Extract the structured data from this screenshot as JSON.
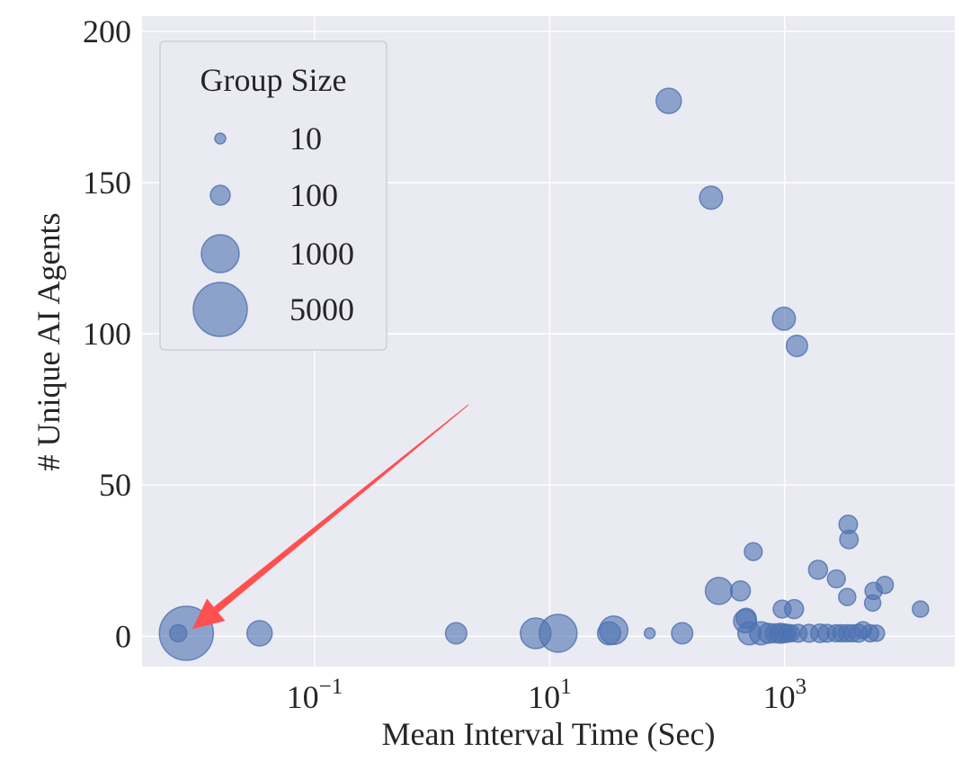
{
  "chart_data": {
    "type": "scatter",
    "title": "",
    "xlabel": "Mean Interval Time (Sec)",
    "ylabel": "# Unique AI Agents",
    "xscale": "log",
    "xlim": [
      0.0034,
      28000
    ],
    "ylim": [
      -10,
      205
    ],
    "xticks": [
      {
        "value": 0.1,
        "base": "10",
        "exp": "−1"
      },
      {
        "value": 10,
        "base": "10",
        "exp": "1"
      },
      {
        "value": 1000,
        "base": "10",
        "exp": "3"
      }
    ],
    "yticks": [
      0,
      50,
      100,
      150,
      200
    ],
    "grid": true,
    "colors": {
      "background": "#eaeaf2",
      "point": "#4c72b0",
      "grid": "#ffffff",
      "arrow": "#ff5050"
    },
    "legend": {
      "title": "Group Size",
      "placement": "top-left",
      "entries": [
        {
          "label": "10",
          "size": 10
        },
        {
          "label": "100",
          "size": 100
        },
        {
          "label": "1000",
          "size": 1000
        },
        {
          "label": "5000",
          "size": 5000
        }
      ]
    },
    "annotation": {
      "type": "arrow",
      "from": [
        2.03,
        76.5
      ],
      "to": [
        0.0091,
        2.4
      ]
    },
    "points": [
      {
        "x": 0.0081,
        "y": 1,
        "size": 5000
      },
      {
        "x": 0.0069,
        "y": 1,
        "size": 50
      },
      {
        "x": 0.034,
        "y": 1,
        "size": 200
      },
      {
        "x": 1.6,
        "y": 1,
        "size": 120
      },
      {
        "x": 7.6,
        "y": 1,
        "size": 400
      },
      {
        "x": 11.8,
        "y": 1,
        "size": 1000
      },
      {
        "x": 35,
        "y": 2,
        "size": 300
      },
      {
        "x": 32,
        "y": 1,
        "size": 150
      },
      {
        "x": 71,
        "y": 1,
        "size": 10
      },
      {
        "x": 134,
        "y": 1,
        "size": 120
      },
      {
        "x": 103,
        "y": 177,
        "size": 200
      },
      {
        "x": 236,
        "y": 145,
        "size": 150
      },
      {
        "x": 984,
        "y": 105,
        "size": 150
      },
      {
        "x": 1270,
        "y": 96,
        "size": 120
      },
      {
        "x": 275,
        "y": 15,
        "size": 250
      },
      {
        "x": 420,
        "y": 15,
        "size": 100
      },
      {
        "x": 540,
        "y": 28,
        "size": 60
      },
      {
        "x": 460,
        "y": 5,
        "size": 150
      },
      {
        "x": 470,
        "y": 6,
        "size": 100
      },
      {
        "x": 500,
        "y": 1,
        "size": 150
      },
      {
        "x": 630,
        "y": 1,
        "size": 150
      },
      {
        "x": 1920,
        "y": 22,
        "size": 80
      },
      {
        "x": 2750,
        "y": 19,
        "size": 60
      },
      {
        "x": 3470,
        "y": 37,
        "size": 70
      },
      {
        "x": 3520,
        "y": 32,
        "size": 70
      },
      {
        "x": 3400,
        "y": 13,
        "size": 50
      },
      {
        "x": 5700,
        "y": 15,
        "size": 50
      },
      {
        "x": 7100,
        "y": 17,
        "size": 50
      },
      {
        "x": 5600,
        "y": 11,
        "size": 40
      },
      {
        "x": 14300,
        "y": 9,
        "size": 40
      },
      {
        "x": 950,
        "y": 9,
        "size": 60
      },
      {
        "x": 1200,
        "y": 9,
        "size": 80
      },
      {
        "x": 728,
        "y": 1,
        "size": 100
      },
      {
        "x": 824,
        "y": 1,
        "size": 80
      },
      {
        "x": 916,
        "y": 1,
        "size": 100
      },
      {
        "x": 982,
        "y": 1,
        "size": 80
      },
      {
        "x": 1054,
        "y": 1,
        "size": 60
      },
      {
        "x": 1130,
        "y": 1,
        "size": 50
      },
      {
        "x": 1300,
        "y": 1,
        "size": 60
      },
      {
        "x": 1610,
        "y": 1,
        "size": 60
      },
      {
        "x": 1990,
        "y": 1,
        "size": 70
      },
      {
        "x": 2290,
        "y": 1,
        "size": 60
      },
      {
        "x": 2730,
        "y": 1,
        "size": 50
      },
      {
        "x": 3030,
        "y": 1,
        "size": 50
      },
      {
        "x": 3370,
        "y": 1,
        "size": 50
      },
      {
        "x": 3750,
        "y": 1,
        "size": 50
      },
      {
        "x": 4240,
        "y": 1,
        "size": 60
      },
      {
        "x": 4630,
        "y": 2,
        "size": 50
      },
      {
        "x": 5330,
        "y": 1,
        "size": 50
      },
      {
        "x": 6030,
        "y": 1,
        "size": 40
      }
    ]
  }
}
